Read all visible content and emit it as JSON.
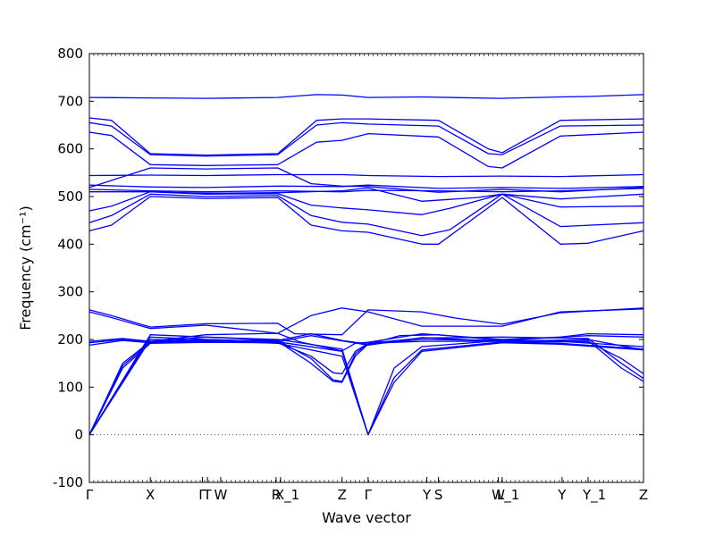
{
  "chart_data": {
    "type": "line",
    "title": "",
    "xlabel": "Wave vector",
    "ylabel": "Frequency (cm⁻¹)",
    "ylim": [
      -100,
      800
    ],
    "yticks": [
      -100,
      0,
      100,
      200,
      300,
      400,
      500,
      600,
      700,
      800
    ],
    "x_range": [
      0,
      100
    ],
    "grid": false,
    "line_color": "#0000ff",
    "zero_line": {
      "y": 0,
      "style": "dotted",
      "color": "#555555"
    },
    "high_symmetry_points": [
      {
        "label": "Γ",
        "x": 0
      },
      {
        "label": "X",
        "x": 11.0
      },
      {
        "label": "Γ",
        "x": 20.4,
        "overlap": "ΓT"
      },
      {
        "label": "T",
        "x": 21.3,
        "overlap": "ΓT"
      },
      {
        "label": "W",
        "x": 23.7
      },
      {
        "label": "R",
        "x": 33.7
      },
      {
        "label": "X_1",
        "x": 34.5
      },
      {
        "label": "Z",
        "x": 45.6
      },
      {
        "label": "Γ",
        "x": 50.3
      },
      {
        "label": "Y",
        "x": 60.9
      },
      {
        "label": "S",
        "x": 63.0
      },
      {
        "label": "W",
        "x": 73.8
      },
      {
        "label": "L_1",
        "x": 74.5
      },
      {
        "label": "Y",
        "x": 85.3
      },
      {
        "label": "Y_1",
        "x": 90.0
      },
      {
        "label": "Z",
        "x": 100
      }
    ],
    "series": [
      {
        "values": [
          [
            0,
            708
          ],
          [
            11,
            707
          ],
          [
            21,
            706
          ],
          [
            34,
            708
          ],
          [
            41,
            714
          ],
          [
            45.6,
            713
          ],
          [
            50.3,
            708
          ],
          [
            60,
            709
          ],
          [
            74,
            706
          ],
          [
            85,
            709
          ],
          [
            90,
            710
          ],
          [
            100,
            714
          ]
        ]
      },
      {
        "values": [
          [
            0,
            665
          ],
          [
            4,
            660
          ],
          [
            11,
            590
          ],
          [
            21,
            587
          ],
          [
            34,
            590
          ],
          [
            41,
            660
          ],
          [
            45.6,
            663
          ],
          [
            50.3,
            663
          ],
          [
            63,
            660
          ],
          [
            72,
            600
          ],
          [
            74.5,
            592
          ],
          [
            85,
            660
          ],
          [
            100,
            663
          ]
        ]
      },
      {
        "values": [
          [
            0,
            655
          ],
          [
            4,
            648
          ],
          [
            11,
            588
          ],
          [
            21,
            585
          ],
          [
            34,
            588
          ],
          [
            41,
            650
          ],
          [
            45.6,
            655
          ],
          [
            50.3,
            652
          ],
          [
            63,
            648
          ],
          [
            72,
            590
          ],
          [
            74.5,
            588
          ],
          [
            85,
            648
          ],
          [
            100,
            650
          ]
        ]
      },
      {
        "values": [
          [
            0,
            635
          ],
          [
            4,
            628
          ],
          [
            11,
            567
          ],
          [
            21,
            565
          ],
          [
            34,
            567
          ],
          [
            41,
            614
          ],
          [
            45.6,
            618
          ],
          [
            50.3,
            632
          ],
          [
            63,
            625
          ],
          [
            72,
            563
          ],
          [
            74.5,
            560
          ],
          [
            85,
            627
          ],
          [
            100,
            635
          ]
        ]
      },
      {
        "values": [
          [
            0,
            544
          ],
          [
            11,
            545
          ],
          [
            21,
            544
          ],
          [
            34,
            546
          ],
          [
            45.6,
            546
          ],
          [
            50.3,
            544
          ],
          [
            63,
            542
          ],
          [
            74.5,
            543
          ],
          [
            85,
            542
          ],
          [
            100,
            546
          ]
        ]
      },
      {
        "values": [
          [
            0,
            524
          ],
          [
            11,
            520
          ],
          [
            21,
            519
          ],
          [
            34,
            522
          ],
          [
            45.6,
            521
          ],
          [
            50.3,
            524
          ],
          [
            63,
            517
          ],
          [
            74.5,
            519
          ],
          [
            85,
            517
          ],
          [
            100,
            521
          ]
        ]
      },
      {
        "values": [
          [
            0,
            519
          ],
          [
            11,
            560
          ],
          [
            21,
            558
          ],
          [
            34,
            560
          ],
          [
            40,
            527
          ],
          [
            45.6,
            522
          ],
          [
            50.3,
            521
          ],
          [
            63,
            509
          ],
          [
            74.5,
            515
          ],
          [
            85,
            510
          ],
          [
            100,
            519
          ]
        ]
      },
      {
        "values": [
          [
            0,
            515
          ],
          [
            11,
            512
          ],
          [
            21,
            510
          ],
          [
            34,
            512
          ],
          [
            45.6,
            510
          ],
          [
            50.3,
            513
          ],
          [
            63,
            512
          ],
          [
            74.5,
            510
          ],
          [
            85,
            512
          ],
          [
            100,
            517
          ]
        ]
      },
      {
        "values": [
          [
            0,
            510
          ],
          [
            11,
            510
          ],
          [
            21,
            507
          ],
          [
            34,
            508
          ],
          [
            45.6,
            512
          ],
          [
            50.3,
            518
          ],
          [
            60,
            490
          ],
          [
            70,
            498
          ],
          [
            74.5,
            505
          ],
          [
            85,
            495
          ],
          [
            100,
            505
          ]
        ]
      },
      {
        "values": [
          [
            0,
            470
          ],
          [
            4,
            480
          ],
          [
            11,
            510
          ],
          [
            21,
            505
          ],
          [
            34,
            506
          ],
          [
            40,
            482
          ],
          [
            45.6,
            476
          ],
          [
            50.3,
            472
          ],
          [
            60,
            462
          ],
          [
            65,
            475
          ],
          [
            74.5,
            505
          ],
          [
            85,
            478
          ],
          [
            100,
            480
          ]
        ]
      },
      {
        "values": [
          [
            0,
            445
          ],
          [
            4,
            460
          ],
          [
            11,
            505
          ],
          [
            21,
            500
          ],
          [
            34,
            502
          ],
          [
            40,
            460
          ],
          [
            45.6,
            446
          ],
          [
            50.3,
            442
          ],
          [
            60,
            418
          ],
          [
            65,
            430
          ],
          [
            74.5,
            505
          ],
          [
            85,
            437
          ],
          [
            100,
            445
          ]
        ]
      },
      {
        "values": [
          [
            0,
            428
          ],
          [
            4,
            440
          ],
          [
            11,
            500
          ],
          [
            21,
            496
          ],
          [
            34,
            498
          ],
          [
            40,
            440
          ],
          [
            45.6,
            428
          ],
          [
            50.3,
            425
          ],
          [
            60,
            400
          ],
          [
            63,
            400
          ],
          [
            74.5,
            498
          ],
          [
            85,
            400
          ],
          [
            90,
            402
          ],
          [
            100,
            428
          ]
        ]
      },
      {
        "values": [
          [
            0,
            262
          ],
          [
            4,
            250
          ],
          [
            11,
            226
          ],
          [
            21,
            233
          ],
          [
            34,
            234
          ],
          [
            37,
            212
          ],
          [
            45.6,
            210
          ],
          [
            50.3,
            262
          ],
          [
            60,
            258
          ],
          [
            66,
            245
          ],
          [
            74.5,
            232
          ],
          [
            85,
            256
          ],
          [
            100,
            266
          ]
        ]
      },
      {
        "values": [
          [
            0,
            258
          ],
          [
            4,
            246
          ],
          [
            11,
            223
          ],
          [
            21,
            230
          ],
          [
            34,
            213
          ],
          [
            40,
            250
          ],
          [
            45.6,
            266
          ],
          [
            50.3,
            258
          ],
          [
            60,
            228
          ],
          [
            74.5,
            228
          ],
          [
            85,
            258
          ],
          [
            100,
            264
          ]
        ]
      },
      {
        "values": [
          [
            0,
            196
          ],
          [
            6,
            202
          ],
          [
            11,
            196
          ],
          [
            21,
            210
          ],
          [
            34,
            213
          ],
          [
            38,
            195
          ],
          [
            45.6,
            176
          ],
          [
            48,
            192
          ],
          [
            50.3,
            194
          ],
          [
            60,
            212
          ],
          [
            74.5,
            200
          ],
          [
            85,
            205
          ],
          [
            90,
            212
          ],
          [
            100,
            210
          ]
        ]
      },
      {
        "values": [
          [
            0,
            193
          ],
          [
            6,
            200
          ],
          [
            11,
            195
          ],
          [
            21,
            205
          ],
          [
            34,
            198
          ],
          [
            40,
            212
          ],
          [
            45.6,
            198
          ],
          [
            50.3,
            190
          ],
          [
            56,
            208
          ],
          [
            63,
            210
          ],
          [
            74.5,
            198
          ],
          [
            90,
            208
          ],
          [
            100,
            205
          ]
        ]
      },
      {
        "values": [
          [
            0,
            188
          ],
          [
            6,
            198
          ],
          [
            11,
            193
          ],
          [
            21,
            200
          ],
          [
            34,
            195
          ],
          [
            40,
            208
          ],
          [
            45.6,
            197
          ],
          [
            50.3,
            188
          ],
          [
            60,
            204
          ],
          [
            74.5,
            196
          ],
          [
            90,
            200
          ],
          [
            100,
            178
          ]
        ]
      },
      {
        "values": [
          [
            0,
            0
          ],
          [
            6,
            150
          ],
          [
            11,
            196
          ],
          [
            21,
            198
          ],
          [
            34,
            198
          ],
          [
            40,
            160
          ],
          [
            44,
            115
          ],
          [
            45.6,
            112
          ],
          [
            48,
            170
          ],
          [
            50.3,
            192
          ],
          [
            60,
            203
          ],
          [
            74.5,
            205
          ],
          [
            90,
            202
          ],
          [
            96,
            150
          ],
          [
            100,
            118
          ]
        ]
      },
      {
        "values": [
          [
            0,
            0
          ],
          [
            6,
            145
          ],
          [
            11,
            194
          ],
          [
            21,
            196
          ],
          [
            34,
            196
          ],
          [
            40,
            150
          ],
          [
            44,
            112
          ],
          [
            45.6,
            110
          ],
          [
            48,
            165
          ],
          [
            50.3,
            190
          ],
          [
            60,
            200
          ],
          [
            74.5,
            198
          ],
          [
            90,
            198
          ],
          [
            96,
            140
          ],
          [
            100,
            112
          ]
        ]
      },
      {
        "values": [
          [
            0,
            0
          ],
          [
            6,
            140
          ],
          [
            11,
            192
          ],
          [
            21,
            194
          ],
          [
            34,
            193
          ],
          [
            40,
            165
          ],
          [
            44,
            130
          ],
          [
            45.6,
            128
          ],
          [
            48,
            175
          ],
          [
            50.3,
            192
          ],
          [
            60,
            196
          ],
          [
            74.5,
            196
          ],
          [
            90,
            195
          ],
          [
            96,
            160
          ],
          [
            100,
            128
          ]
        ]
      },
      {
        "values": [
          [
            0,
            0
          ],
          [
            11,
            210
          ],
          [
            21,
            205
          ],
          [
            34,
            200
          ],
          [
            45.6,
            180
          ],
          [
            50.3,
            0
          ],
          [
            55,
            140
          ],
          [
            60,
            185
          ],
          [
            74.5,
            198
          ],
          [
            85,
            196
          ],
          [
            100,
            185
          ]
        ]
      },
      {
        "values": [
          [
            0,
            0
          ],
          [
            11,
            205
          ],
          [
            21,
            200
          ],
          [
            34,
            195
          ],
          [
            45.6,
            175
          ],
          [
            50.3,
            0
          ],
          [
            55,
            120
          ],
          [
            60,
            178
          ],
          [
            74.5,
            195
          ],
          [
            85,
            192
          ],
          [
            100,
            180
          ]
        ]
      },
      {
        "values": [
          [
            0,
            0
          ],
          [
            11,
            200
          ],
          [
            21,
            198
          ],
          [
            34,
            192
          ],
          [
            45.6,
            165
          ],
          [
            50.3,
            0
          ],
          [
            55,
            110
          ],
          [
            60,
            175
          ],
          [
            74.5,
            193
          ],
          [
            85,
            190
          ],
          [
            100,
            178
          ]
        ]
      }
    ]
  }
}
